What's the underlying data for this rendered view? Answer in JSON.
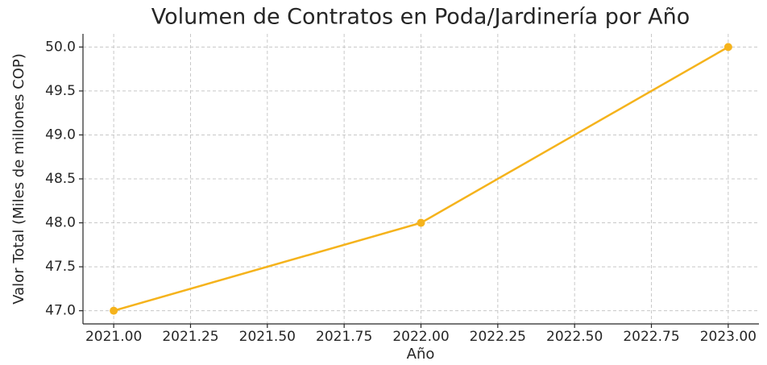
{
  "chart_data": {
    "type": "line",
    "title": "Volumen de Contratos en Poda/Jardinería por Año",
    "x_label": "Año",
    "y_label": "Valor Total (Miles de millones COP)",
    "x": [
      2021,
      2022,
      2023
    ],
    "values": [
      47,
      48,
      50
    ],
    "color": "#f5b31c",
    "xlim": [
      2020.9,
      2023.1
    ],
    "ylim": [
      46.85,
      50.15
    ],
    "xticks": [
      {
        "value": 2021,
        "label": "2021.00"
      },
      {
        "value": 2021.25,
        "label": "2021.25"
      },
      {
        "value": 2021.5,
        "label": "2021.50"
      },
      {
        "value": 2021.75,
        "label": "2021.75"
      },
      {
        "value": 2022,
        "label": "2022.00"
      },
      {
        "value": 2022.25,
        "label": "2022.25"
      },
      {
        "value": 2022.5,
        "label": "2022.50"
      },
      {
        "value": 2022.75,
        "label": "2022.75"
      },
      {
        "value": 2023,
        "label": "2023.00"
      }
    ],
    "yticks": [
      {
        "value": 47,
        "label": "47.0"
      },
      {
        "value": 47.5,
        "label": "47.5"
      },
      {
        "value": 48,
        "label": "48.0"
      },
      {
        "value": 48.5,
        "label": "48.5"
      },
      {
        "value": 49,
        "label": "49.0"
      },
      {
        "value": 49.5,
        "label": "49.5"
      },
      {
        "value": 50,
        "label": "50.0"
      }
    ],
    "grid": true
  }
}
